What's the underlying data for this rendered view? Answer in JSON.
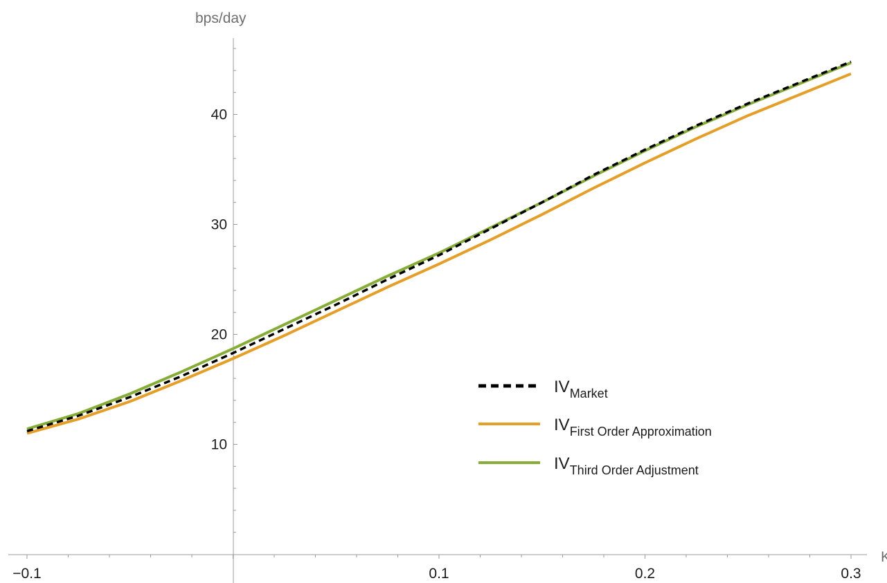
{
  "chart_data": {
    "type": "line",
    "xlabel": "K",
    "ylabel": "bps/day",
    "xlim": [
      -0.1,
      0.3
    ],
    "ylim": [
      0,
      46
    ],
    "x_ticks": [
      -0.1,
      0.1,
      0.2,
      0.3
    ],
    "x_tick_labels": [
      "−0.1",
      "0.1",
      "0.2",
      "0.3"
    ],
    "y_ticks": [
      10,
      20,
      30,
      40
    ],
    "y_tick_labels": [
      "10",
      "20",
      "30",
      "40"
    ],
    "grid": false,
    "legend_position": "right-center",
    "colors": {
      "market": "#000000",
      "first": "#e59e26",
      "third": "#86ad36",
      "axis": "#9a9a9a"
    },
    "series": [
      {
        "name": "IV_Market",
        "label_main": "IV",
        "label_sub": "Market",
        "style": "dashed",
        "color": "#000000",
        "x": [
          -0.1,
          -0.075,
          -0.05,
          -0.025,
          0,
          0.025,
          0.05,
          0.075,
          0.1,
          0.125,
          0.15,
          0.175,
          0.2,
          0.225,
          0.25,
          0.275,
          0.3
        ],
        "y": [
          11.2,
          12.6,
          14.3,
          16.2,
          18.3,
          20.5,
          22.7,
          25.0,
          27.2,
          29.6,
          32.0,
          34.5,
          36.8,
          39.0,
          41.0,
          42.9,
          44.8
        ]
      },
      {
        "name": "IV_First Order Approximation",
        "label_main": "IV",
        "label_sub": "First Order Approximation",
        "style": "solid",
        "color": "#e59e26",
        "x": [
          -0.1,
          -0.075,
          -0.05,
          -0.025,
          0,
          0.025,
          0.05,
          0.075,
          0.1,
          0.125,
          0.15,
          0.175,
          0.2,
          0.225,
          0.25,
          0.275,
          0.3
        ],
        "y": [
          11.0,
          12.3,
          13.9,
          15.8,
          17.8,
          19.9,
          22.1,
          24.3,
          26.4,
          28.6,
          30.9,
          33.3,
          35.6,
          37.8,
          39.9,
          41.8,
          43.7
        ]
      },
      {
        "name": "IV_Third Order Adjustment",
        "label_main": "IV",
        "label_sub": "Third Order Adjustment",
        "style": "solid",
        "color": "#86ad36",
        "x": [
          -0.1,
          -0.075,
          -0.05,
          -0.025,
          0,
          0.025,
          0.05,
          0.075,
          0.1,
          0.125,
          0.15,
          0.175,
          0.2,
          0.225,
          0.25,
          0.275,
          0.3
        ],
        "y": [
          11.4,
          12.8,
          14.6,
          16.6,
          18.7,
          20.9,
          23.1,
          25.3,
          27.4,
          29.7,
          32.0,
          34.4,
          36.7,
          38.9,
          40.9,
          42.8,
          44.7
        ]
      }
    ]
  }
}
